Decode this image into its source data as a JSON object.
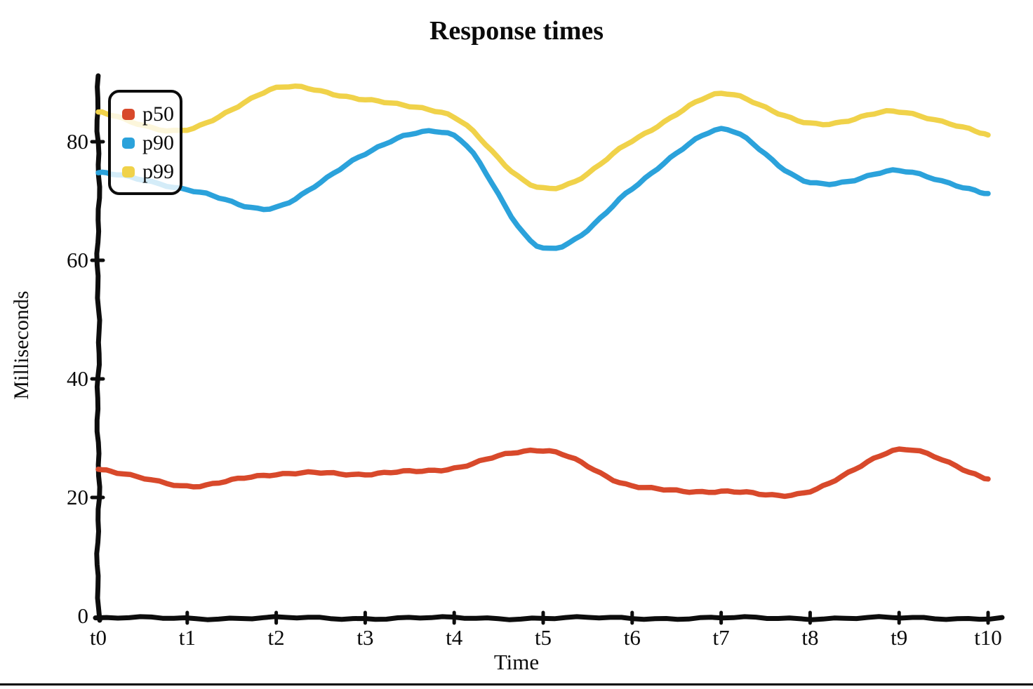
{
  "page": {
    "background_color": "#ffffff",
    "bottom_border_color": "#000000"
  },
  "chart_data": {
    "type": "line",
    "style": "xkcd-hand-drawn",
    "title": "Response times",
    "xlabel": "Time",
    "ylabel": "Milliseconds",
    "categories": [
      "t0",
      "t1",
      "t2",
      "t3",
      "t4",
      "t5",
      "t6",
      "t7",
      "t8",
      "t9",
      "t10"
    ],
    "y_ticks": [
      {
        "label": "0",
        "value": 0
      },
      {
        "label": "20",
        "value": 20
      },
      {
        "label": "40",
        "value": 40
      },
      {
        "label": "60",
        "value": 60
      },
      {
        "label": "80",
        "value": 80
      }
    ],
    "ylim": [
      0,
      92
    ],
    "grid": false,
    "legend_position": "top-left",
    "axis_color": "#0d0d0d",
    "series": [
      {
        "name": "p50",
        "color": "#d8492b",
        "values": [
          25,
          22,
          24,
          24,
          25,
          28,
          22,
          21,
          21,
          28,
          23
        ]
      },
      {
        "name": "p90",
        "color": "#2ba2db",
        "values": [
          75,
          72,
          69,
          78,
          81,
          62,
          72,
          82,
          73,
          75,
          71
        ]
      },
      {
        "name": "p99",
        "color": "#f0d24a",
        "values": [
          85,
          82,
          89,
          87,
          84,
          72,
          80,
          88,
          83,
          85,
          81
        ]
      }
    ]
  }
}
